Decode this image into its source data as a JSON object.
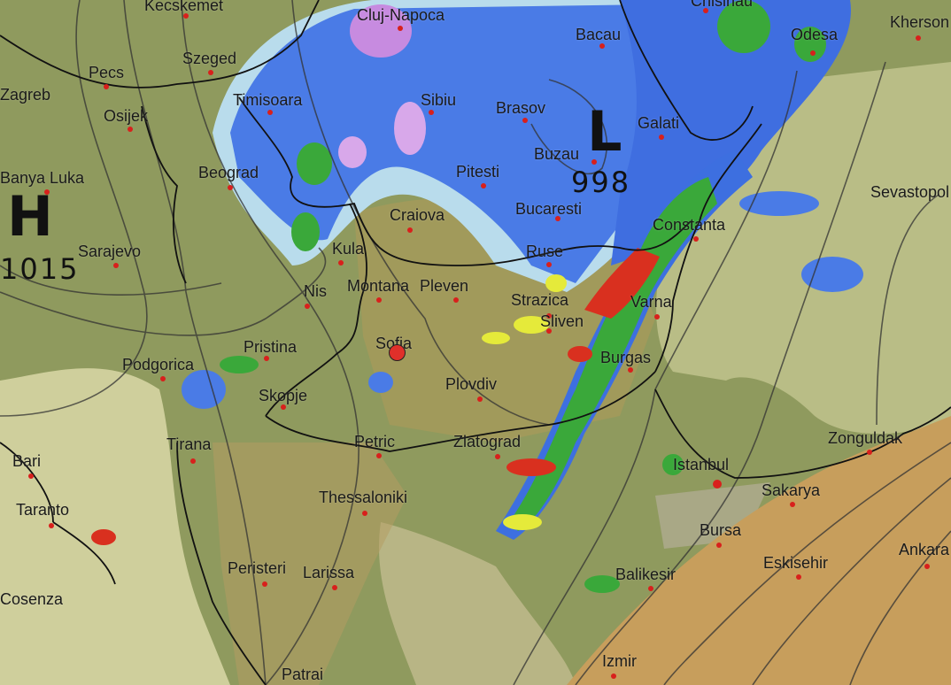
{
  "map": {
    "pressure_systems": [
      {
        "symbol": "H",
        "value": "1015"
      },
      {
        "symbol": "L",
        "value": "998"
      }
    ],
    "selected_location": "Sofia",
    "colors": {
      "land": "#8f9a5e",
      "sea": "#c9c994",
      "anatolia": "#c79e5c",
      "rain_light": "#b9dcec",
      "rain_moderate": "#3d6fe0",
      "rain_heavy": "#36a83a",
      "rain_intense": "#e5ea3a",
      "rain_extreme": "#d9301f",
      "snow": "#c78be0",
      "marker": "#e0302a"
    },
    "cities": [
      "Kecskemet",
      "Cluj-Napoca",
      "Bacau",
      "Chisinau",
      "Odesa",
      "Kherson",
      "Pecs",
      "Szeged",
      "Timisoara",
      "Osijek",
      "Sibiu",
      "Brasov",
      "Galati",
      "Buzau",
      "Banya Luka",
      "Beograd",
      "Pitesti",
      "Bucaresti",
      "Craiova",
      "Constanta",
      "Sarajevo",
      "Kula",
      "Ruse",
      "Nis",
      "Montana",
      "Pleven",
      "Strazica",
      "Varna",
      "Pristina",
      "Sofia",
      "Sliven",
      "Podgorica",
      "Burgas",
      "Plovdiv",
      "Skopje",
      "Tirana",
      "Petric",
      "Zlatograd",
      "Zonguldak",
      "Bari",
      "Istanbul",
      "Sakarya",
      "Taranto",
      "Thessaloniki",
      "Bursa",
      "Peristeri",
      "Larissa",
      "Eskisehir",
      "Ankara",
      "Balikesir",
      "Patrai",
      "Izmir",
      "Sevastopol",
      "Cosenza",
      "Zagreb"
    ]
  }
}
